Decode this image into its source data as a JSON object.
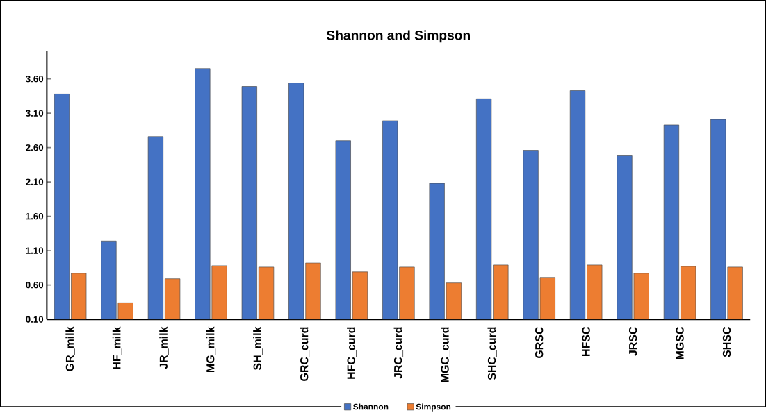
{
  "chart_data": {
    "type": "bar",
    "title": "Shannon and Simpson",
    "categories": [
      "GR_milk",
      "HF_milk",
      "JR_milk",
      "MG_milk",
      "SH_milk",
      "GRC_curd",
      "HFC_curd",
      "JRC_curd",
      "MGC_curd",
      "SHC_curd",
      "GRSC",
      "HFSC",
      "JRSC",
      "MGSC",
      "SHSC"
    ],
    "series": [
      {
        "name": "Shannon",
        "color": "#4472c4",
        "values": [
          3.38,
          1.24,
          2.76,
          3.75,
          3.49,
          3.54,
          2.7,
          2.99,
          2.08,
          3.31,
          2.56,
          3.43,
          2.48,
          2.93,
          3.01
        ]
      },
      {
        "name": "Simpson",
        "color": "#ed7d31",
        "values": [
          0.77,
          0.34,
          0.69,
          0.88,
          0.86,
          0.92,
          0.79,
          0.86,
          0.63,
          0.89,
          0.71,
          0.89,
          0.77,
          0.87,
          0.86
        ]
      }
    ],
    "ylim": [
      0.1,
      4.0
    ],
    "yticks": [
      {
        "value": 0.1,
        "label": "0.10"
      },
      {
        "value": 0.6,
        "label": "0.60"
      },
      {
        "value": 1.1,
        "label": "1.10"
      },
      {
        "value": 1.6,
        "label": "1.60"
      },
      {
        "value": 2.1,
        "label": "2.10"
      },
      {
        "value": 2.6,
        "label": "2.60"
      },
      {
        "value": 3.1,
        "label": "3.10"
      },
      {
        "value": 3.6,
        "label": "3.60"
      }
    ],
    "legend": "bottom"
  }
}
